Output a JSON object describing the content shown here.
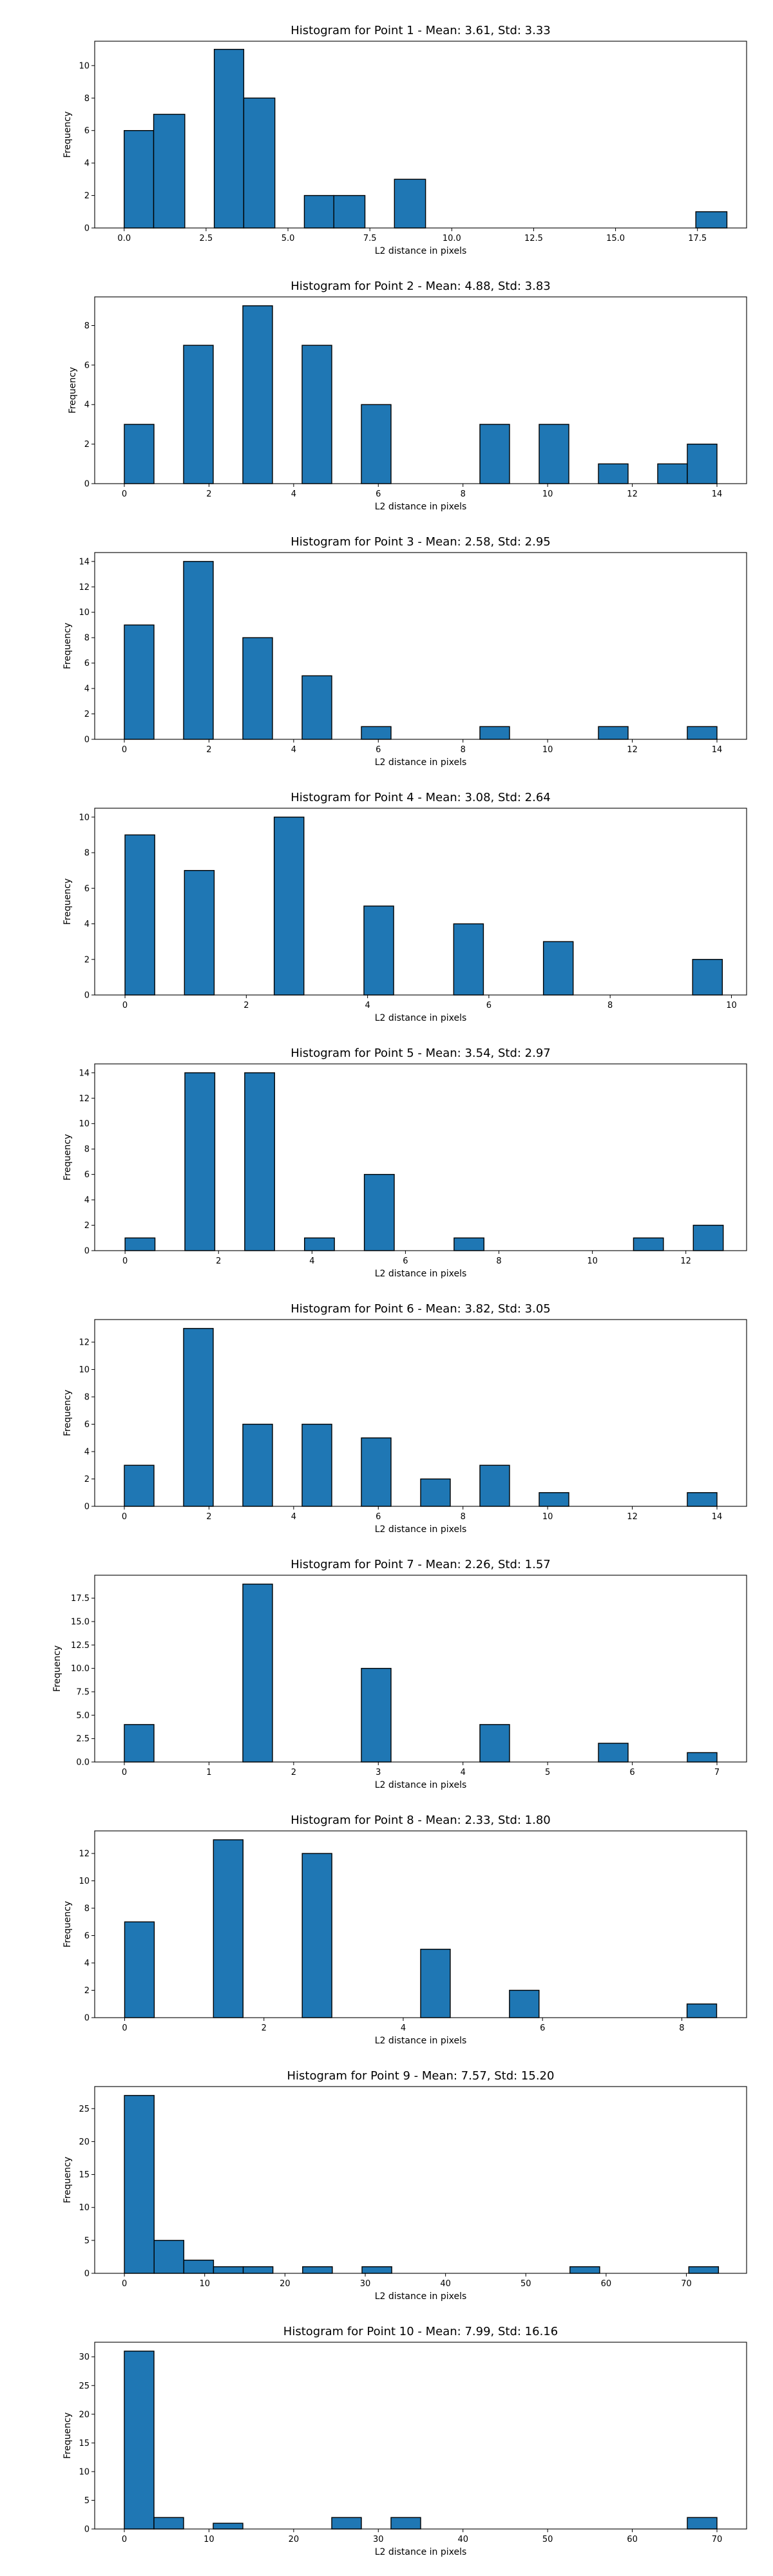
{
  "chart_data": [
    {
      "type": "bar",
      "title": "Histogram for Point 1 - Mean: 3.61, Std: 3.33",
      "xlabel": "L2 distance in pixels",
      "ylabel": "Frequency",
      "xlim": [
        -0.9,
        19.0
      ],
      "ylim": [
        0,
        11.5
      ],
      "xticks": [
        0,
        2.5,
        5,
        7.5,
        10,
        12.5,
        15,
        17.5
      ],
      "xtick_labels": [
        "0.0",
        "2.5",
        "5.0",
        "7.5",
        "10.0",
        "12.5",
        "15.0",
        "17.5"
      ],
      "yticks": [
        0,
        2,
        4,
        6,
        8,
        10
      ],
      "ytick_labels": [
        "0",
        "2",
        "4",
        "6",
        "8",
        "10"
      ],
      "bins": [
        {
          "x0": 0.0,
          "x1": 0.9,
          "value": 6
        },
        {
          "x0": 0.9,
          "x1": 1.85,
          "value": 7
        },
        {
          "x0": 2.75,
          "x1": 3.65,
          "value": 11
        },
        {
          "x0": 3.65,
          "x1": 4.6,
          "value": 8
        },
        {
          "x0": 5.5,
          "x1": 6.4,
          "value": 2
        },
        {
          "x0": 6.4,
          "x1": 7.35,
          "value": 2
        },
        {
          "x0": 8.25,
          "x1": 9.2,
          "value": 3
        },
        {
          "x0": 17.45,
          "x1": 18.4,
          "value": 1
        }
      ]
    },
    {
      "type": "bar",
      "title": "Histogram for Point 2 - Mean: 4.88, Std: 3.83",
      "xlabel": "L2 distance in pixels",
      "ylabel": "Frequency",
      "xlim": [
        -0.7,
        14.7
      ],
      "ylim": [
        0,
        9.45
      ],
      "xticks": [
        0,
        2,
        4,
        6,
        8,
        10,
        12,
        14
      ],
      "xtick_labels": [
        "0",
        "2",
        "4",
        "6",
        "8",
        "10",
        "12",
        "14"
      ],
      "yticks": [
        0,
        2,
        4,
        6,
        8
      ],
      "ytick_labels": [
        "0",
        "2",
        "4",
        "6",
        "8"
      ],
      "bins": [
        {
          "x0": 0,
          "x1": 0.7,
          "value": 3
        },
        {
          "x0": 1.4,
          "x1": 2.1,
          "value": 7
        },
        {
          "x0": 2.8,
          "x1": 3.5,
          "value": 9
        },
        {
          "x0": 4.2,
          "x1": 4.9,
          "value": 7
        },
        {
          "x0": 5.6,
          "x1": 6.3,
          "value": 4
        },
        {
          "x0": 8.4,
          "x1": 9.1,
          "value": 3
        },
        {
          "x0": 9.8,
          "x1": 10.5,
          "value": 3
        },
        {
          "x0": 11.2,
          "x1": 11.9,
          "value": 1
        },
        {
          "x0": 12.6,
          "x1": 13.3,
          "value": 1
        },
        {
          "x0": 13.3,
          "x1": 14.0,
          "value": 2
        }
      ]
    },
    {
      "type": "bar",
      "title": "Histogram for Point 3 - Mean: 2.58, Std: 2.95",
      "xlabel": "L2 distance in pixels",
      "ylabel": "Frequency",
      "xlim": [
        -0.7,
        14.7
      ],
      "ylim": [
        0,
        14.7
      ],
      "xticks": [
        0,
        2,
        4,
        6,
        8,
        10,
        12,
        14
      ],
      "xtick_labels": [
        "0",
        "2",
        "4",
        "6",
        "8",
        "10",
        "12",
        "14"
      ],
      "yticks": [
        0,
        2,
        4,
        6,
        8,
        10,
        12,
        14
      ],
      "ytick_labels": [
        "0",
        "2",
        "4",
        "6",
        "8",
        "10",
        "12",
        "14"
      ],
      "bins": [
        {
          "x0": 0,
          "x1": 0.7,
          "value": 9
        },
        {
          "x0": 1.4,
          "x1": 2.1,
          "value": 14
        },
        {
          "x0": 2.8,
          "x1": 3.5,
          "value": 8
        },
        {
          "x0": 4.2,
          "x1": 4.9,
          "value": 5
        },
        {
          "x0": 5.6,
          "x1": 6.3,
          "value": 1
        },
        {
          "x0": 8.4,
          "x1": 9.1,
          "value": 1
        },
        {
          "x0": 11.2,
          "x1": 11.9,
          "value": 1
        },
        {
          "x0": 13.3,
          "x1": 14.0,
          "value": 1
        }
      ]
    },
    {
      "type": "bar",
      "title": "Histogram for Point 4 - Mean: 3.08, Std: 2.64",
      "xlabel": "L2 distance in pixels",
      "ylabel": "Frequency",
      "xlim": [
        -0.5,
        10.25
      ],
      "ylim": [
        0,
        10.5
      ],
      "xticks": [
        0,
        2,
        4,
        6,
        8,
        10
      ],
      "xtick_labels": [
        "0",
        "2",
        "4",
        "6",
        "8",
        "10"
      ],
      "yticks": [
        0,
        2,
        4,
        6,
        8,
        10
      ],
      "ytick_labels": [
        "0",
        "2",
        "4",
        "6",
        "8",
        "10"
      ],
      "bins": [
        {
          "x0": 0,
          "x1": 0.49,
          "value": 9
        },
        {
          "x0": 0.98,
          "x1": 1.47,
          "value": 7
        },
        {
          "x0": 2.46,
          "x1": 2.95,
          "value": 10
        },
        {
          "x0": 3.94,
          "x1": 4.43,
          "value": 5
        },
        {
          "x0": 5.42,
          "x1": 5.91,
          "value": 4
        },
        {
          "x0": 6.9,
          "x1": 7.39,
          "value": 3
        },
        {
          "x0": 9.36,
          "x1": 9.85,
          "value": 2
        }
      ]
    },
    {
      "type": "bar",
      "title": "Histogram for Point 5 - Mean: 3.54, Std: 2.97",
      "xlabel": "L2 distance in pixels",
      "ylabel": "Frequency",
      "xlim": [
        -0.65,
        13.3
      ],
      "ylim": [
        0,
        14.7
      ],
      "xticks": [
        0,
        2,
        4,
        6,
        8,
        10,
        12
      ],
      "xtick_labels": [
        "0",
        "2",
        "4",
        "6",
        "8",
        "10",
        "12"
      ],
      "yticks": [
        0,
        2,
        4,
        6,
        8,
        10,
        12,
        14
      ],
      "ytick_labels": [
        "0",
        "2",
        "4",
        "6",
        "8",
        "10",
        "12",
        "14"
      ],
      "bins": [
        {
          "x0": 0,
          "x1": 0.64,
          "value": 1
        },
        {
          "x0": 1.28,
          "x1": 1.92,
          "value": 14
        },
        {
          "x0": 2.56,
          "x1": 3.2,
          "value": 14
        },
        {
          "x0": 3.84,
          "x1": 4.48,
          "value": 1
        },
        {
          "x0": 5.12,
          "x1": 5.76,
          "value": 6
        },
        {
          "x0": 7.04,
          "x1": 7.68,
          "value": 1
        },
        {
          "x0": 10.88,
          "x1": 11.52,
          "value": 1
        },
        {
          "x0": 12.16,
          "x1": 12.8,
          "value": 2
        }
      ]
    },
    {
      "type": "bar",
      "title": "Histogram for Point 6 - Mean: 3.82, Std: 3.05",
      "xlabel": "L2 distance in pixels",
      "ylabel": "Frequency",
      "xlim": [
        -0.7,
        14.7
      ],
      "ylim": [
        0,
        13.65
      ],
      "xticks": [
        0,
        2,
        4,
        6,
        8,
        10,
        12,
        14
      ],
      "xtick_labels": [
        "0",
        "2",
        "4",
        "6",
        "8",
        "10",
        "12",
        "14"
      ],
      "yticks": [
        0,
        2,
        4,
        6,
        8,
        10,
        12
      ],
      "ytick_labels": [
        "0",
        "2",
        "4",
        "6",
        "8",
        "10",
        "12"
      ],
      "bins": [
        {
          "x0": 0,
          "x1": 0.7,
          "value": 3
        },
        {
          "x0": 1.4,
          "x1": 2.1,
          "value": 13
        },
        {
          "x0": 2.8,
          "x1": 3.5,
          "value": 6
        },
        {
          "x0": 4.2,
          "x1": 4.9,
          "value": 6
        },
        {
          "x0": 5.6,
          "x1": 6.3,
          "value": 5
        },
        {
          "x0": 7.0,
          "x1": 7.7,
          "value": 2
        },
        {
          "x0": 8.4,
          "x1": 9.1,
          "value": 3
        },
        {
          "x0": 9.8,
          "x1": 10.5,
          "value": 1
        },
        {
          "x0": 13.3,
          "x1": 14.0,
          "value": 1
        }
      ]
    },
    {
      "type": "bar",
      "title": "Histogram for Point 7 - Mean: 2.26, Std: 1.57",
      "xlabel": "L2 distance in pixels",
      "ylabel": "Frequency",
      "xlim": [
        -0.35,
        7.35
      ],
      "ylim": [
        0,
        19.95
      ],
      "xticks": [
        0,
        1,
        2,
        3,
        4,
        5,
        6,
        7
      ],
      "xtick_labels": [
        "0",
        "1",
        "2",
        "3",
        "4",
        "5",
        "6",
        "7"
      ],
      "yticks": [
        0,
        2.5,
        5,
        7.5,
        10,
        12.5,
        15,
        17.5
      ],
      "ytick_labels": [
        "0.0",
        "2.5",
        "5.0",
        "7.5",
        "10.0",
        "12.5",
        "15.0",
        "17.5"
      ],
      "bins": [
        {
          "x0": 0,
          "x1": 0.35,
          "value": 4
        },
        {
          "x0": 1.4,
          "x1": 1.75,
          "value": 19
        },
        {
          "x0": 2.8,
          "x1": 3.15,
          "value": 10
        },
        {
          "x0": 4.2,
          "x1": 4.55,
          "value": 4
        },
        {
          "x0": 5.6,
          "x1": 5.95,
          "value": 2
        },
        {
          "x0": 6.65,
          "x1": 7.0,
          "value": 1
        }
      ]
    },
    {
      "type": "bar",
      "title": "Histogram for Point 8 - Mean: 2.33, Std: 1.80",
      "xlabel": "L2 distance in pixels",
      "ylabel": "Frequency",
      "xlim": [
        -0.43,
        8.93
      ],
      "ylim": [
        0,
        13.65
      ],
      "xticks": [
        0,
        2,
        4,
        6,
        8
      ],
      "xtick_labels": [
        "0",
        "2",
        "4",
        "6",
        "8"
      ],
      "yticks": [
        0,
        2,
        4,
        6,
        8,
        10,
        12
      ],
      "ytick_labels": [
        "0",
        "2",
        "4",
        "6",
        "8",
        "10",
        "12"
      ],
      "bins": [
        {
          "x0": 0,
          "x1": 0.425,
          "value": 7
        },
        {
          "x0": 1.275,
          "x1": 1.7,
          "value": 13
        },
        {
          "x0": 2.55,
          "x1": 2.975,
          "value": 12
        },
        {
          "x0": 4.25,
          "x1": 4.675,
          "value": 5
        },
        {
          "x0": 5.525,
          "x1": 5.95,
          "value": 2
        },
        {
          "x0": 8.075,
          "x1": 8.5,
          "value": 1
        }
      ]
    },
    {
      "type": "bar",
      "title": "Histogram for Point 9 - Mean: 7.57, Std: 15.20",
      "xlabel": "L2 distance in pixels",
      "ylabel": "Frequency",
      "xlim": [
        -3.7,
        77.5
      ],
      "ylim": [
        0,
        28.35
      ],
      "xticks": [
        0,
        10,
        20,
        30,
        40,
        50,
        60,
        70
      ],
      "xtick_labels": [
        "0",
        "10",
        "20",
        "30",
        "40",
        "50",
        "60",
        "70"
      ],
      "yticks": [
        0,
        5,
        10,
        15,
        20,
        25
      ],
      "ytick_labels": [
        "0",
        "5",
        "10",
        "15",
        "20",
        "25"
      ],
      "bins": [
        {
          "x0": 0,
          "x1": 3.7,
          "value": 27
        },
        {
          "x0": 3.7,
          "x1": 7.4,
          "value": 5
        },
        {
          "x0": 7.4,
          "x1": 11.1,
          "value": 2
        },
        {
          "x0": 11.1,
          "x1": 14.8,
          "value": 1
        },
        {
          "x0": 14.8,
          "x1": 18.5,
          "value": 1
        },
        {
          "x0": 22.2,
          "x1": 25.9,
          "value": 1
        },
        {
          "x0": 29.6,
          "x1": 33.3,
          "value": 1
        },
        {
          "x0": 55.5,
          "x1": 59.2,
          "value": 1
        },
        {
          "x0": 70.3,
          "x1": 74.0,
          "value": 1
        }
      ]
    },
    {
      "type": "bar",
      "title": "Histogram for Point 10 - Mean: 7.99, Std: 16.16",
      "xlabel": "L2 distance in pixels",
      "ylabel": "Frequency",
      "xlim": [
        -3.5,
        73.5
      ],
      "ylim": [
        0,
        32.55
      ],
      "xticks": [
        0,
        10,
        20,
        30,
        40,
        50,
        60,
        70
      ],
      "xtick_labels": [
        "0",
        "10",
        "20",
        "30",
        "40",
        "50",
        "60",
        "70"
      ],
      "yticks": [
        0,
        5,
        10,
        15,
        20,
        25,
        30
      ],
      "ytick_labels": [
        "0",
        "5",
        "10",
        "15",
        "20",
        "25",
        "30"
      ],
      "bins": [
        {
          "x0": 0,
          "x1": 3.5,
          "value": 31
        },
        {
          "x0": 3.5,
          "x1": 7.0,
          "value": 2
        },
        {
          "x0": 10.5,
          "x1": 14.0,
          "value": 1
        },
        {
          "x0": 24.5,
          "x1": 28.0,
          "value": 2
        },
        {
          "x0": 31.5,
          "x1": 35.0,
          "value": 2
        },
        {
          "x0": 66.5,
          "x1": 70.0,
          "value": 2
        }
      ]
    }
  ],
  "colors": {
    "bar_fill": "#1f77b4",
    "bar_edge": "#000000",
    "axis": "#000000",
    "background": "#ffffff"
  }
}
